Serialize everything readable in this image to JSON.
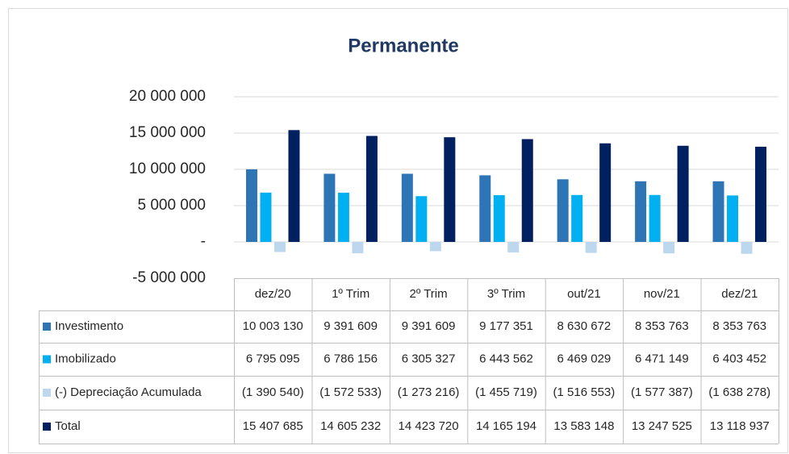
{
  "chart_data": {
    "type": "bar",
    "title": "Permanente",
    "categories": [
      "dez/20",
      "1º Trim",
      "2º Trim",
      "3º Trim",
      "out/21",
      "nov/21",
      "dez/21"
    ],
    "series": [
      {
        "name": "Investimento",
        "color": "#2e75b6",
        "values": [
          10003130,
          9391609,
          9391609,
          9177351,
          8630672,
          8353763,
          8353763
        ],
        "value_labels": [
          "10 003 130",
          "9 391 609",
          "9 391 609",
          "9 177 351",
          "8 630 672",
          "8 353 763",
          "8 353 763"
        ]
      },
      {
        "name": "Imobilizado",
        "color": "#00b0f0",
        "values": [
          6795095,
          6786156,
          6305327,
          6443562,
          6469029,
          6471149,
          6403452
        ],
        "value_labels": [
          "6 795 095",
          "6 786 156",
          "6 305 327",
          "6 443 562",
          "6 469 029",
          "6 471 149",
          "6 403 452"
        ]
      },
      {
        "name": "(-) Depreciação Acumulada",
        "color": "#bdd7ee",
        "values": [
          -1390540,
          -1572533,
          -1273216,
          -1455719,
          -1516553,
          -1577387,
          -1638278
        ],
        "value_labels": [
          "(1 390 540)",
          "(1 572 533)",
          "(1 273 216)",
          "(1 455 719)",
          "(1 516 553)",
          "(1 577 387)",
          "(1 638 278)"
        ]
      },
      {
        "name": "Total",
        "color": "#002060",
        "values": [
          15407685,
          14605232,
          14423720,
          14165194,
          13583148,
          13247525,
          13118937
        ],
        "value_labels": [
          "15 407 685",
          "14 605 232",
          "14 423 720",
          "14 165 194",
          "13 583 148",
          "13 247 525",
          "13 118 937"
        ]
      }
    ],
    "ylim": [
      -5000000,
      20000000
    ],
    "yticks": [
      {
        "value": -5000000,
        "label": "-5 000 000"
      },
      {
        "value": 0,
        "label": "-"
      },
      {
        "value": 5000000,
        "label": "5 000 000"
      },
      {
        "value": 10000000,
        "label": "10 000 000"
      },
      {
        "value": 15000000,
        "label": "15 000 000"
      },
      {
        "value": 20000000,
        "label": "20 000 000"
      }
    ],
    "grid": true
  }
}
